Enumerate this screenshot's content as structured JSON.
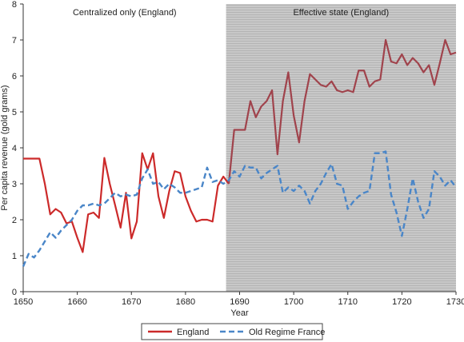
{
  "chart_data": {
    "type": "line",
    "title": "",
    "xlabel": "Year",
    "ylabel": "Per capita revenue (gold grams)",
    "xlim": [
      1650,
      1730
    ],
    "ylim": [
      0,
      8
    ],
    "xticks": [
      1650,
      1660,
      1670,
      1680,
      1690,
      1700,
      1710,
      1720,
      1730
    ],
    "yticks": [
      0,
      1,
      2,
      3,
      4,
      5,
      6,
      7,
      8
    ],
    "grid": false,
    "legend_position": "bottom-center",
    "regions": [
      {
        "label": "Centralized only (England)",
        "x_start": 1650,
        "x_end": 1687.5,
        "shaded": false
      },
      {
        "label": "Effective state (England)",
        "x_start": 1687.5,
        "x_end": 1730,
        "shaded": true,
        "color": "#c8c8c8"
      }
    ],
    "series": [
      {
        "name": "England",
        "style": "solid",
        "colors": [
          "#cc2a2a",
          "#a0434c"
        ],
        "color_split_x": 1688,
        "x": [
          1650,
          1651,
          1652,
          1653,
          1654,
          1655,
          1656,
          1657,
          1658,
          1659,
          1660,
          1661,
          1662,
          1663,
          1664,
          1665,
          1666,
          1667,
          1668,
          1669,
          1670,
          1671,
          1672,
          1673,
          1674,
          1675,
          1676,
          1677,
          1678,
          1679,
          1680,
          1681,
          1682,
          1683,
          1684,
          1685,
          1686,
          1687,
          1688,
          1689,
          1690,
          1691,
          1692,
          1693,
          1694,
          1695,
          1696,
          1697,
          1698,
          1699,
          1700,
          1701,
          1702,
          1703,
          1704,
          1705,
          1706,
          1707,
          1708,
          1709,
          1710,
          1711,
          1712,
          1713,
          1714,
          1715,
          1716,
          1717,
          1718,
          1719,
          1720,
          1721,
          1722,
          1723,
          1724,
          1725,
          1726,
          1727,
          1728,
          1729,
          1730
        ],
        "values": [
          3.7,
          3.7,
          3.7,
          3.7,
          3.0,
          2.15,
          2.3,
          2.2,
          1.9,
          1.95,
          1.5,
          1.1,
          2.15,
          2.2,
          2.05,
          3.72,
          3.0,
          2.4,
          1.78,
          2.75,
          1.48,
          1.95,
          3.85,
          3.4,
          3.85,
          2.65,
          2.05,
          2.8,
          3.35,
          3.3,
          2.65,
          2.25,
          1.95,
          2.0,
          2.0,
          1.95,
          2.95,
          3.2,
          3.0,
          4.5,
          4.5,
          4.5,
          5.3,
          4.85,
          5.15,
          5.3,
          5.6,
          3.82,
          5.3,
          6.1,
          4.9,
          4.15,
          5.3,
          6.05,
          5.9,
          5.75,
          5.7,
          5.85,
          5.6,
          5.55,
          5.6,
          5.55,
          6.15,
          6.15,
          5.7,
          5.85,
          5.9,
          7.0,
          6.4,
          6.35,
          6.6,
          6.3,
          6.5,
          6.35,
          6.1,
          6.3,
          5.75,
          6.35,
          7.0,
          6.6,
          6.65
        ]
      },
      {
        "name": "Old Regime France",
        "style": "dashed",
        "colors": [
          "#4a86c8"
        ],
        "x": [
          1650,
          1651,
          1652,
          1653,
          1654,
          1655,
          1656,
          1657,
          1658,
          1659,
          1660,
          1661,
          1662,
          1663,
          1664,
          1665,
          1666,
          1667,
          1668,
          1669,
          1670,
          1671,
          1672,
          1673,
          1674,
          1675,
          1676,
          1677,
          1678,
          1679,
          1680,
          1681,
          1682,
          1683,
          1684,
          1685,
          1686,
          1687,
          1688,
          1689,
          1690,
          1691,
          1692,
          1693,
          1694,
          1695,
          1696,
          1697,
          1698,
          1699,
          1700,
          1701,
          1702,
          1703,
          1704,
          1705,
          1706,
          1707,
          1708,
          1709,
          1710,
          1711,
          1712,
          1713,
          1714,
          1715,
          1716,
          1717,
          1718,
          1719,
          1720,
          1721,
          1722,
          1723,
          1724,
          1725,
          1726,
          1727,
          1728,
          1729,
          1730
        ],
        "values": [
          0.7,
          1.05,
          0.95,
          1.15,
          1.4,
          1.65,
          1.5,
          1.7,
          1.85,
          2.0,
          2.25,
          2.4,
          2.4,
          2.45,
          2.4,
          2.45,
          2.6,
          2.75,
          2.65,
          2.7,
          2.65,
          2.7,
          3.15,
          3.4,
          3.0,
          3.05,
          2.85,
          3.0,
          2.9,
          2.75,
          2.75,
          2.8,
          2.85,
          2.9,
          3.45,
          3.05,
          3.1,
          3.0,
          3.1,
          3.35,
          3.2,
          3.5,
          3.45,
          3.45,
          3.15,
          3.3,
          3.4,
          3.5,
          2.75,
          2.9,
          2.8,
          2.95,
          2.8,
          2.45,
          2.8,
          3.0,
          3.3,
          3.55,
          3.0,
          2.95,
          2.3,
          2.5,
          2.65,
          2.75,
          2.8,
          3.85,
          3.85,
          3.9,
          2.7,
          2.2,
          1.55,
          2.3,
          3.15,
          2.5,
          2.05,
          2.3,
          3.35,
          3.2,
          2.95,
          3.1,
          2.9
        ]
      }
    ]
  }
}
